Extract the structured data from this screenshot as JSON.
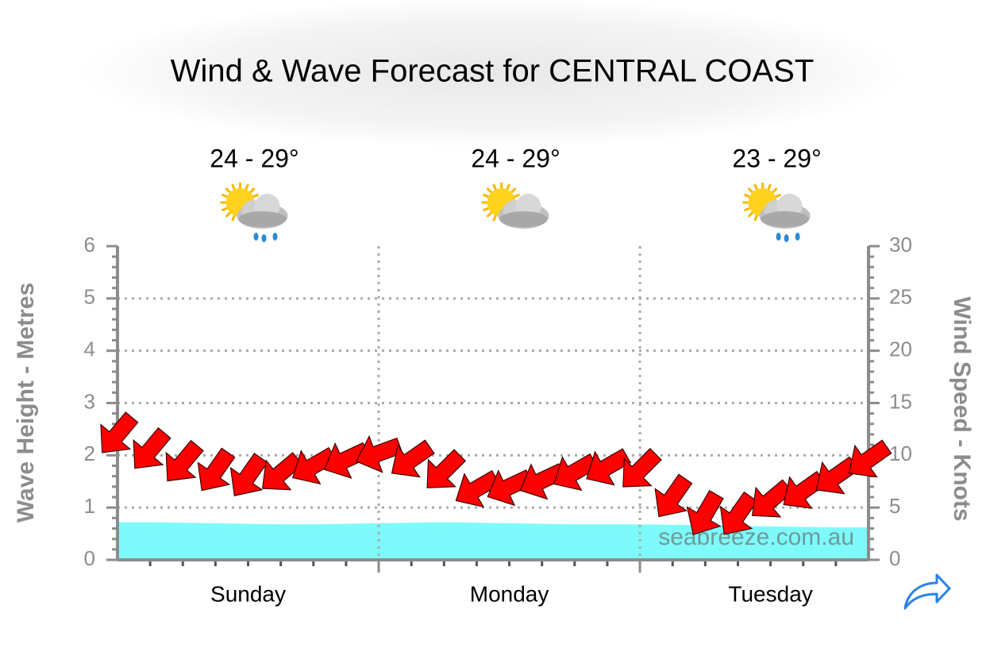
{
  "chart_data": {
    "type": "wind-wave",
    "title": "Wind & Wave Forecast for CENTRAL COAST",
    "y_label": "Wave Height - Metres",
    "y2_label": "Wind Speed - Knots",
    "watermark": "seabreeze.com.au",
    "days": [
      {
        "label": "Sunday",
        "temperature": "24 - 29°"
      },
      {
        "label": "Monday",
        "temperature": "24 - 29°"
      },
      {
        "label": "Tuesday",
        "temperature": "23 - 29°"
      }
    ],
    "x": [
      0,
      3,
      6,
      9,
      12,
      15,
      18,
      21,
      24,
      27,
      30,
      33,
      36,
      39,
      42,
      45,
      48,
      51,
      54,
      57,
      60,
      63,
      66,
      69
    ],
    "xlim": [
      0,
      69
    ],
    "xticks": [
      24,
      48
    ],
    "minor_xticks": [
      3,
      6,
      9,
      12,
      15,
      18,
      21,
      27,
      30,
      33,
      36,
      39,
      42,
      45,
      51,
      54,
      57,
      60,
      63,
      66
    ],
    "ylim": [
      0,
      6
    ],
    "yticks": [
      0,
      1,
      2,
      3,
      4,
      5,
      6
    ],
    "y2lim": [
      0,
      30
    ],
    "y2ticks": [
      0,
      5,
      10,
      15,
      20,
      25,
      30
    ],
    "grid": true,
    "wave_height": {
      "color": "#7ffafa",
      "values": [
        0.72,
        0.72,
        0.71,
        0.7,
        0.69,
        0.68,
        0.68,
        0.69,
        0.7,
        0.71,
        0.72,
        0.71,
        0.7,
        0.69,
        0.68,
        0.68,
        0.68,
        0.67,
        0.66,
        0.65,
        0.64,
        0.63,
        0.62,
        0.62
      ]
    },
    "wind_speed": {
      "color": "#ff0000",
      "axis": "y2",
      "values": [
        12,
        10.5,
        9.3,
        8.5,
        8,
        8.3,
        9,
        9.6,
        10.2,
        9.6,
        8.5,
        6.8,
        7,
        7.6,
        8.4,
        8.9,
        8.6,
        6,
        4.4,
        4.3,
        5.7,
        6.6,
        8,
        9.6
      ],
      "directions": [
        40,
        40,
        40,
        35,
        35,
        50,
        60,
        65,
        70,
        55,
        45,
        60,
        65,
        65,
        60,
        60,
        45,
        35,
        30,
        35,
        50,
        55,
        55,
        55
      ]
    }
  }
}
